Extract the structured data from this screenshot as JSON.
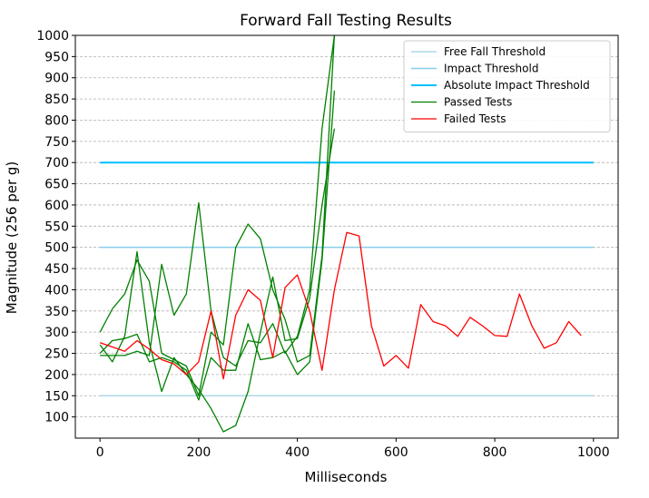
{
  "chart_data": {
    "type": "line",
    "title": "Forward Fall Testing Results",
    "xlabel": "Milliseconds",
    "ylabel": "Magnitude (256 per g)",
    "xlim": [
      -50,
      1050
    ],
    "ylim": [
      50,
      1000
    ],
    "xticks": [
      0,
      200,
      400,
      600,
      800,
      1000
    ],
    "yticks": [
      100,
      150,
      200,
      250,
      300,
      350,
      400,
      450,
      500,
      550,
      600,
      650,
      700,
      750,
      800,
      850,
      900,
      950,
      1000
    ],
    "grid": "horizontal dashed",
    "legend_position": "top-right",
    "thresholds": [
      {
        "name": "Free Fall Threshold",
        "value": 150,
        "x": [
          0,
          1000
        ],
        "color": "#add8e6",
        "width": 1.5
      },
      {
        "name": "Impact Threshold",
        "value": 500,
        "x": [
          0,
          1000
        ],
        "color": "#87ceeb",
        "width": 1.5
      },
      {
        "name": "Absolute Impact Threshold",
        "value": 700,
        "x": [
          0,
          1000
        ],
        "color": "#00bfff",
        "width": 2
      }
    ],
    "passed_name": "Passed Tests",
    "passed_color": "#008000",
    "failed_name": "Failed Tests",
    "failed_color": "#ff0000",
    "passed": [
      {
        "x": [
          0,
          25,
          50,
          75,
          100,
          125,
          150,
          175,
          200,
          225,
          250,
          275,
          300,
          325,
          350,
          375,
          400,
          425,
          450,
          475
        ],
        "y": [
          300,
          355,
          390,
          470,
          420,
          250,
          235,
          220,
          150,
          300,
          270,
          500,
          555,
          520,
          400,
          330,
          230,
          245,
          480,
          1000
        ]
      },
      {
        "x": [
          0,
          25,
          50,
          75,
          100,
          125,
          150,
          175,
          200,
          225,
          250,
          275,
          300,
          325,
          350,
          375,
          400,
          425,
          450,
          475
        ],
        "y": [
          245,
          245,
          245,
          255,
          245,
          460,
          340,
          390,
          605,
          350,
          240,
          220,
          280,
          275,
          320,
          250,
          290,
          400,
          780,
          1000
        ]
      },
      {
        "x": [
          0,
          25,
          50,
          75,
          100,
          125,
          150,
          175,
          200,
          225,
          250,
          275,
          300,
          325,
          350,
          375,
          400,
          425,
          450,
          475
        ],
        "y": [
          250,
          280,
          285,
          295,
          230,
          240,
          230,
          210,
          140,
          240,
          210,
          210,
          320,
          235,
          240,
          255,
          200,
          230,
          470,
          870
        ]
      },
      {
        "x": [
          0,
          25,
          50,
          75,
          100,
          125,
          150,
          175,
          200,
          225,
          250,
          275,
          300,
          325,
          350,
          375,
          400,
          425,
          450,
          475
        ],
        "y": [
          270,
          230,
          290,
          490,
          275,
          160,
          240,
          200,
          165,
          120,
          65,
          80,
          160,
          300,
          430,
          280,
          285,
          380,
          600,
          780
        ]
      }
    ],
    "failed": {
      "x": [
        0,
        25,
        50,
        75,
        100,
        125,
        150,
        175,
        200,
        225,
        250,
        275,
        300,
        325,
        350,
        375,
        400,
        425,
        450,
        475,
        500,
        525,
        550,
        575,
        600,
        625,
        650,
        675,
        700,
        725,
        750,
        775,
        800,
        825,
        850,
        875,
        900,
        925,
        950,
        975
      ],
      "y": [
        275,
        265,
        255,
        280,
        260,
        235,
        225,
        200,
        230,
        350,
        190,
        340,
        400,
        375,
        240,
        405,
        435,
        350,
        210,
        400,
        535,
        527,
        315,
        220,
        245,
        215,
        365,
        325,
        315,
        290,
        335,
        315,
        292,
        290,
        390,
        315,
        262,
        275,
        325,
        292
      ]
    }
  }
}
